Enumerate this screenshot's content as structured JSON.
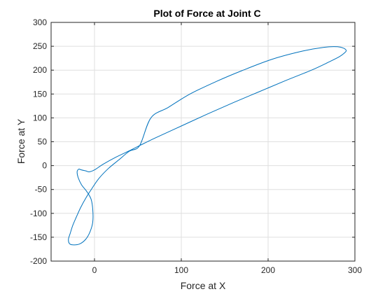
{
  "chart_data": {
    "type": "line",
    "title": "Plot of Force at Joint C",
    "xlabel": "Force at X",
    "ylabel": "Force at Y",
    "xlim": [
      -50,
      300
    ],
    "ylim": [
      -200,
      300
    ],
    "xticks": [
      0,
      100,
      200,
      300
    ],
    "yticks": [
      -200,
      -150,
      -100,
      -50,
      0,
      50,
      100,
      150,
      200,
      250,
      300
    ],
    "grid": true,
    "series_color": "#0072BD",
    "series": [
      {
        "x": [
          -18,
          -15,
          -10,
          -6,
          0,
          10,
          25,
          40,
          52,
          70,
          100,
          130,
          160,
          190,
          220,
          250,
          270,
          282,
          288,
          290,
          287,
          280,
          265,
          240,
          205,
          170,
          140,
          110,
          85,
          65,
          52,
          40,
          28,
          16,
          5,
          -3,
          -10,
          -16,
          -21,
          -25,
          -28,
          -30,
          -29,
          -25,
          -17,
          -10,
          -5,
          -2,
          -2,
          -4,
          -9,
          -15,
          -19,
          -20,
          -18
        ],
        "y": [
          -7,
          -9,
          -11,
          -13,
          -9,
          3,
          18,
          31,
          42,
          58,
          83,
          108,
          132,
          155,
          178,
          200,
          217,
          228,
          236,
          241,
          246,
          249,
          248,
          240,
          223,
          199,
          176,
          150,
          122,
          100,
          42,
          30,
          12,
          -6,
          -27,
          -48,
          -68,
          -88,
          -108,
          -125,
          -142,
          -154,
          -163,
          -166,
          -164,
          -154,
          -138,
          -118,
          -92,
          -70,
          -54,
          -40,
          -24,
          -12,
          -7
        ]
      }
    ]
  }
}
